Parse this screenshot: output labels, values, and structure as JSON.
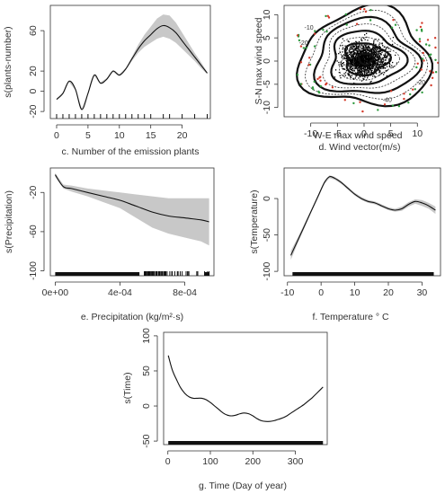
{
  "chart_data": [
    {
      "id": "c",
      "type": "line",
      "caption": "c. Number of the emission plants",
      "ylabel": "s(plants-number)",
      "xticks": [
        0,
        5,
        10,
        15,
        20
      ],
      "yticks": [
        -20,
        0,
        20,
        60
      ],
      "xlim": [
        -1,
        24.5
      ],
      "ylim": [
        -27,
        85
      ],
      "x": [
        0,
        1,
        2,
        3,
        4,
        5,
        6,
        7,
        8,
        9,
        10,
        11,
        12,
        13,
        14,
        15,
        16,
        17,
        18,
        19,
        20,
        21,
        22,
        23,
        24
      ],
      "y": [
        -8,
        -2,
        10,
        2,
        -18,
        -2,
        16,
        8,
        12,
        20,
        16,
        22,
        32,
        42,
        50,
        56,
        62,
        65,
        63,
        58,
        50,
        42,
        34,
        26,
        18
      ],
      "lower": [
        -9,
        -3,
        9,
        1,
        -19,
        -3,
        15,
        7,
        11,
        19,
        15,
        21,
        30,
        38,
        44,
        48,
        52,
        54,
        52,
        48,
        42,
        36,
        30,
        23,
        17
      ],
      "upper": [
        -7,
        -1,
        11,
        3,
        -17,
        -1,
        17,
        9,
        13,
        21,
        17,
        23,
        34,
        46,
        56,
        64,
        72,
        76,
        75,
        68,
        58,
        48,
        38,
        29,
        19
      ],
      "rug": [
        0,
        1,
        2,
        3,
        4,
        5,
        6,
        7,
        8,
        9,
        10,
        11,
        12,
        13,
        14,
        15,
        17,
        18,
        20,
        22,
        24
      ]
    },
    {
      "id": "d",
      "type": "contour",
      "caption_top": "W-E max wind speed",
      "caption": "d. Wind vector(m/s)",
      "ylabel": "S-N max wind speed",
      "xticks": [
        -10,
        -5,
        0,
        5,
        10
      ],
      "yticks": [
        -10,
        -5,
        0,
        5,
        10
      ],
      "xlim": [
        -15,
        14
      ],
      "ylim": [
        -12,
        12
      ],
      "contour_labels": [
        "-20",
        "-10",
        "-20",
        "-40"
      ]
    },
    {
      "id": "e",
      "type": "line",
      "caption": "e. Precipitation (kg/m²·s)",
      "ylabel": "s(Precipitation)",
      "xticks": [
        "0e+00",
        "4e-04",
        "8e-04"
      ],
      "xtick_values": [
        0,
        0.0004,
        0.0008
      ],
      "yticks": [
        -100,
        -60,
        -20
      ],
      "xlim": [
        -3e-05,
        0.00098
      ],
      "ylim": [
        -105,
        5
      ],
      "x": [
        0,
        5e-05,
        0.0001,
        0.0002,
        0.0003,
        0.0004,
        0.0005,
        0.0006,
        0.0007,
        0.0008,
        0.0009,
        0.00095
      ],
      "y": [
        -2,
        -14,
        -16,
        -20,
        -24,
        -28,
        -34,
        -40,
        -44,
        -46,
        -48,
        -50
      ],
      "lower": [
        -4,
        -16,
        -19,
        -24,
        -30,
        -36,
        -46,
        -56,
        -62,
        -66,
        -70,
        -74
      ],
      "upper": [
        0,
        -12,
        -13,
        -16,
        -18,
        -20,
        -22,
        -24,
        -26,
        -26,
        -26,
        -26
      ]
    },
    {
      "id": "f",
      "type": "line",
      "caption": "f. Temperature ° C",
      "ylabel": "s(Temperature)",
      "xticks": [
        -10,
        0,
        10,
        20,
        30
      ],
      "yticks": [
        -100,
        -50,
        0
      ],
      "xlim": [
        -11,
        35.5
      ],
      "ylim": [
        -106,
        42
      ],
      "x": [
        -9,
        -7,
        -5,
        -3,
        -1,
        1,
        2.5,
        4,
        6,
        8,
        10,
        12,
        14,
        16,
        18,
        20,
        22,
        24,
        26,
        28,
        30,
        32,
        34
      ],
      "y": [
        -78,
        -58,
        -38,
        -18,
        2,
        22,
        30,
        28,
        22,
        14,
        6,
        0,
        -4,
        -6,
        -10,
        -14,
        -16,
        -14,
        -8,
        -4,
        -6,
        -10,
        -16
      ],
      "lower": [
        -84,
        -62,
        -41,
        -20,
        0,
        20,
        28,
        26,
        20,
        12,
        4,
        -2,
        -6,
        -8,
        -12,
        -16,
        -18,
        -17,
        -11,
        -7,
        -10,
        -14,
        -21
      ],
      "upper": [
        -72,
        -54,
        -35,
        -16,
        4,
        24,
        32,
        30,
        24,
        16,
        8,
        2,
        -2,
        -4,
        -8,
        -12,
        -14,
        -11,
        -5,
        -1,
        -2,
        -6,
        -11
      ]
    },
    {
      "id": "g",
      "type": "line",
      "caption": "g. Time (Day of year)",
      "ylabel": "s(Time)",
      "xticks": [
        0,
        100,
        200,
        300
      ],
      "yticks": [
        -50,
        0,
        50,
        100
      ],
      "xlim": [
        -10,
        375
      ],
      "ylim": [
        -55,
        105
      ],
      "x": [
        1,
        10,
        20,
        30,
        40,
        50,
        60,
        70,
        80,
        90,
        100,
        110,
        120,
        130,
        140,
        150,
        160,
        170,
        180,
        190,
        200,
        210,
        220,
        230,
        240,
        250,
        260,
        270,
        280,
        290,
        300,
        310,
        320,
        330,
        340,
        350,
        360,
        365
      ],
      "y": [
        72,
        52,
        38,
        26,
        18,
        13,
        11,
        11,
        11,
        9,
        5,
        0,
        -5,
        -10,
        -13,
        -14,
        -13,
        -11,
        -10,
        -11,
        -14,
        -18,
        -21,
        -22,
        -22,
        -21,
        -19,
        -17,
        -14,
        -10,
        -6,
        -2,
        2,
        7,
        12,
        18,
        24,
        27
      ]
    }
  ]
}
